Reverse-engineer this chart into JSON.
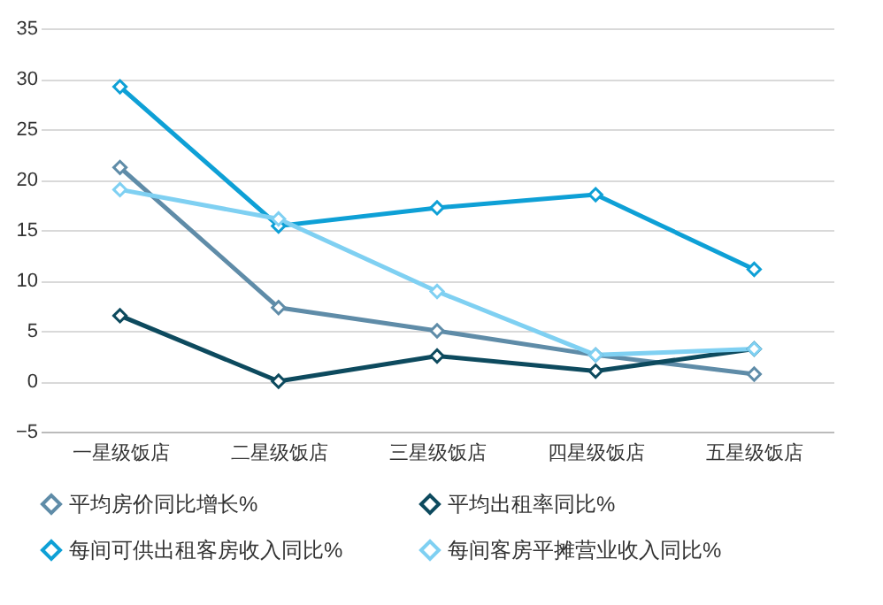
{
  "chart_data": {
    "type": "line",
    "categories": [
      "一星级饭店",
      "二星级饭店",
      "三星级饭店",
      "四星级饭店",
      "五星级饭店"
    ],
    "series": [
      {
        "name": "平均房价同比增长%",
        "color": "#5f8ca8",
        "values": [
          21.2,
          7.3,
          5,
          2.6,
          0.7
        ]
      },
      {
        "name": "平均出租率同比%",
        "color": "#0d4a5e",
        "values": [
          6.5,
          0,
          2.5,
          1,
          3.2
        ]
      },
      {
        "name": "每间可供出租客房收入同比%",
        "color": "#0ea0d6",
        "values": [
          29.2,
          15.4,
          17.2,
          18.5,
          11.1
        ]
      },
      {
        "name": "每间客房平摊营业收入同比%",
        "color": "#7fd0f2",
        "values": [
          19,
          16.1,
          8.9,
          2.6,
          3.2
        ]
      }
    ],
    "ylim": [
      -5,
      35
    ],
    "yticks": [
      -5,
      0,
      5,
      10,
      15,
      20,
      25,
      30,
      35
    ],
    "grid": "y",
    "legend": "bottom",
    "marker": "diamond",
    "line_style": "solid"
  }
}
